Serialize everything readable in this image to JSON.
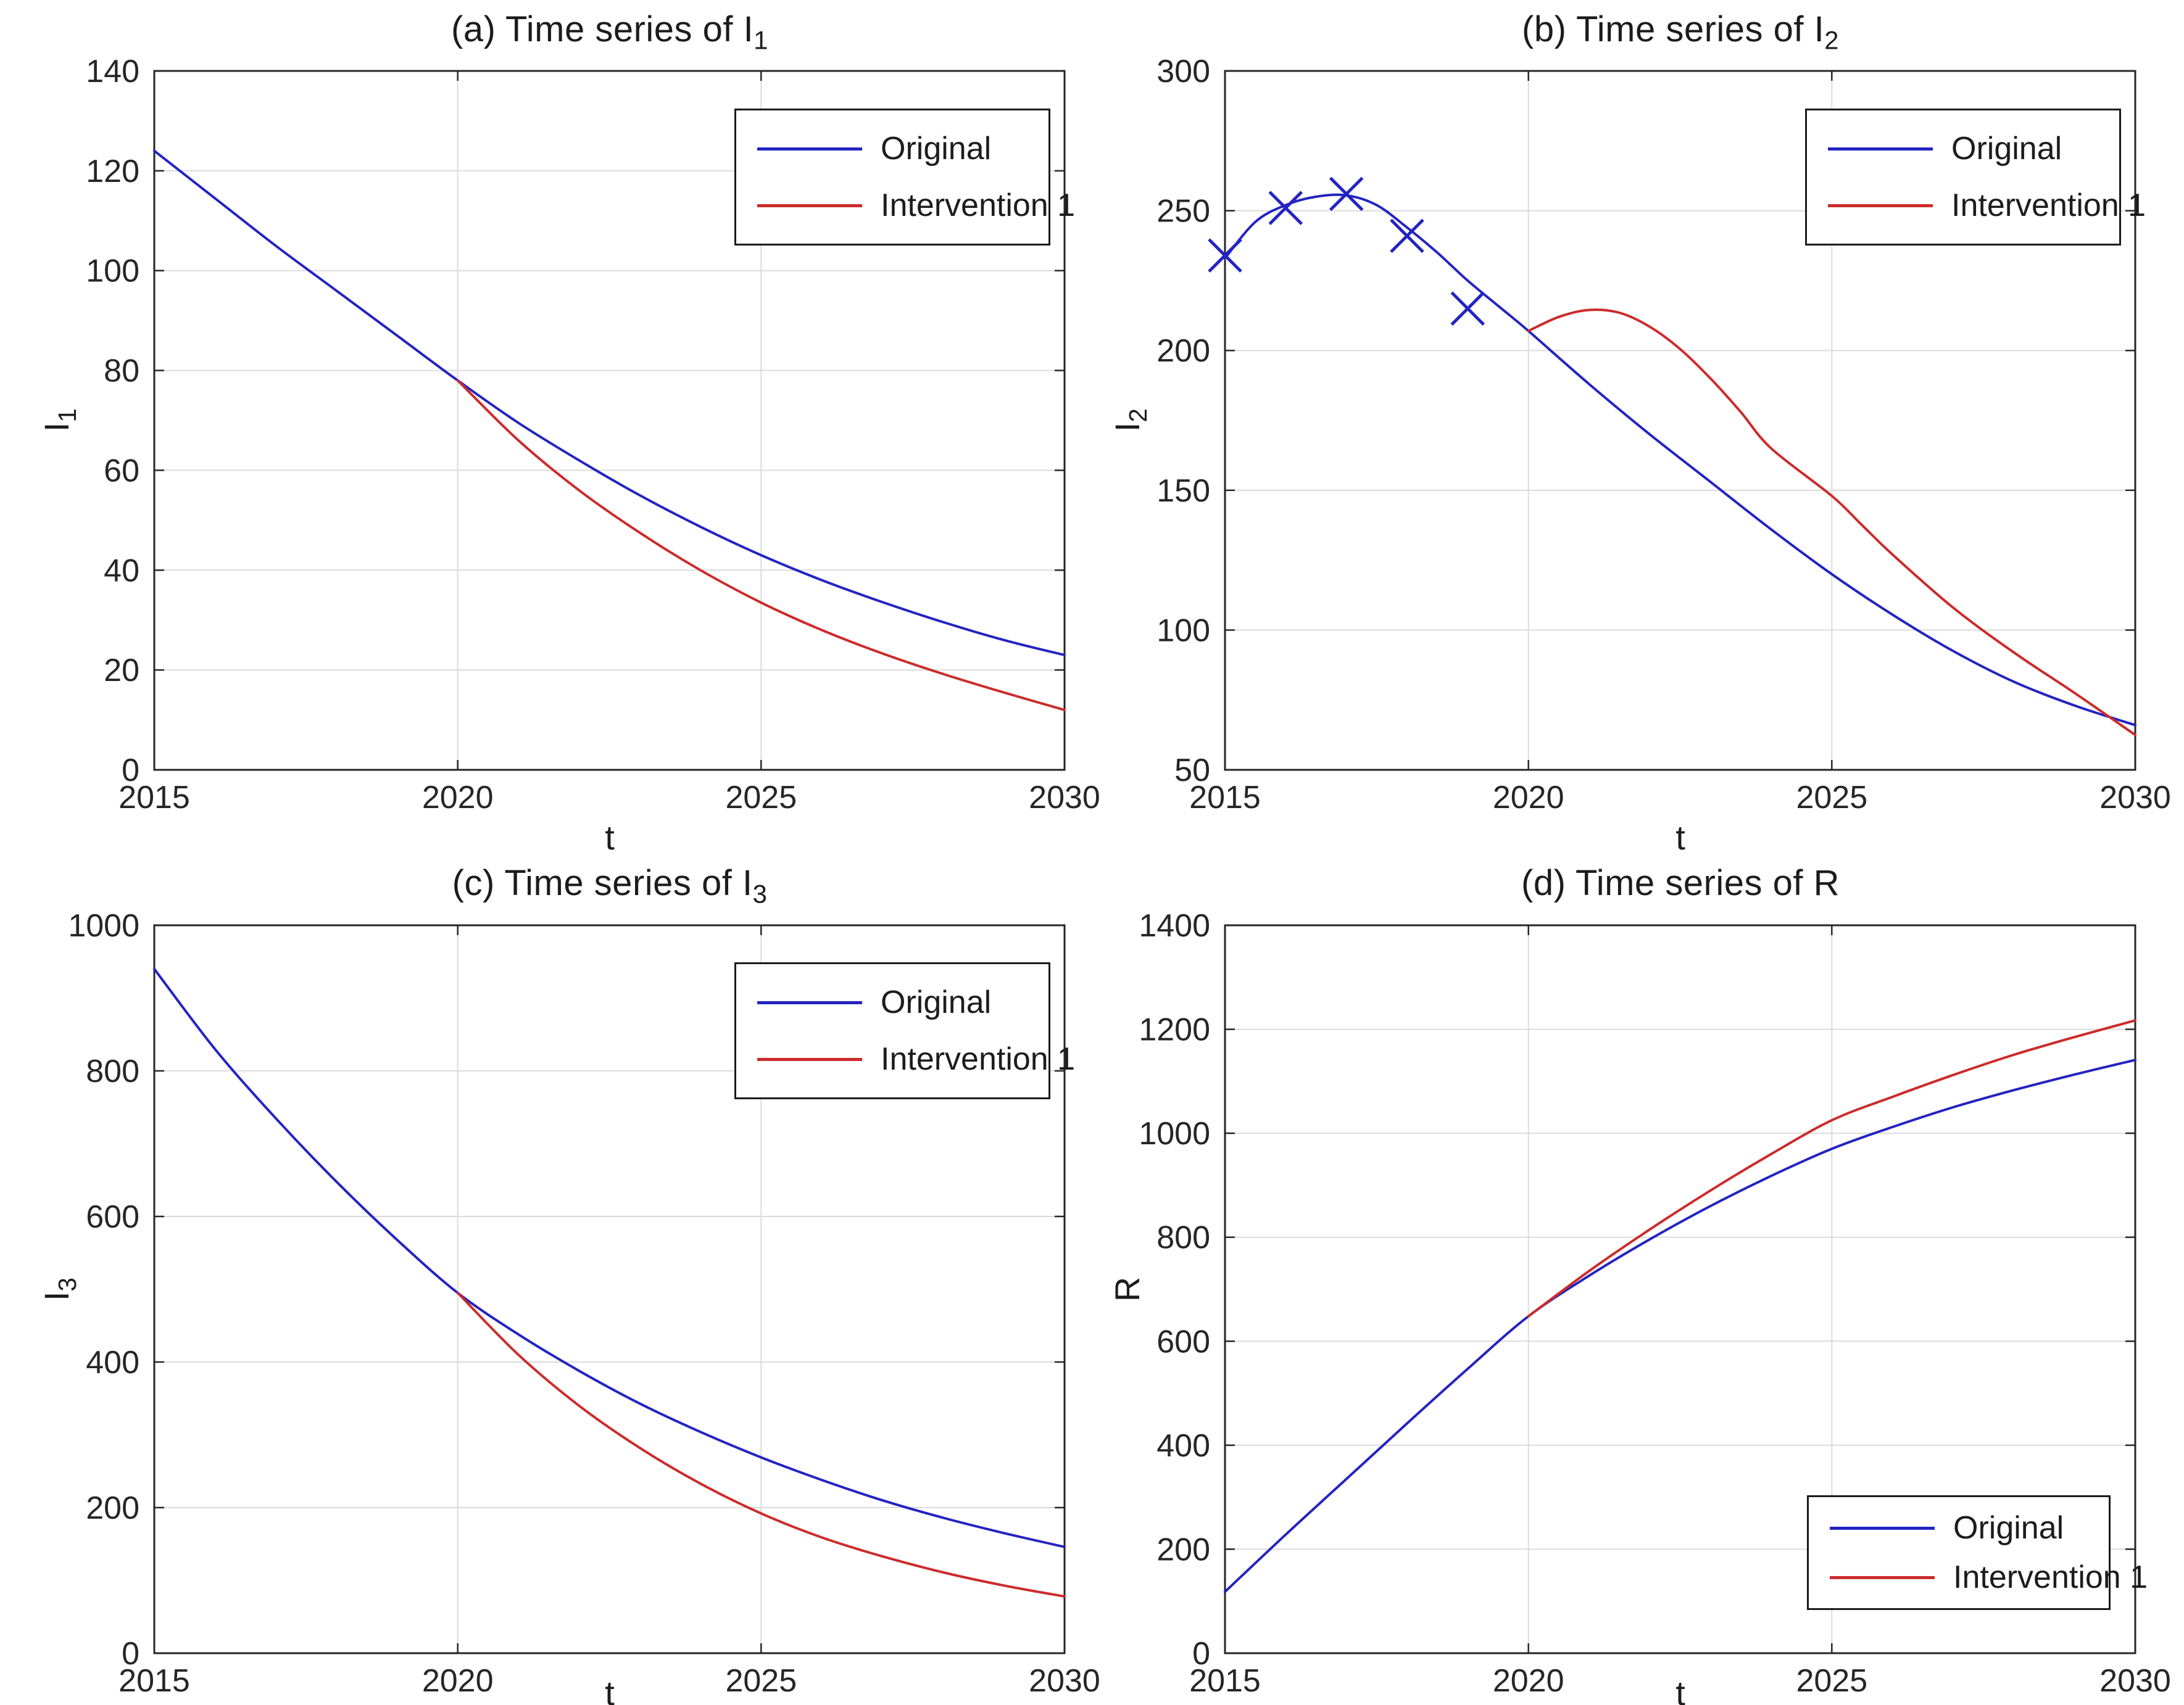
{
  "figure": {
    "background": "#ffffff"
  },
  "colors": {
    "original": "#2323C2",
    "intervention": "#CC2B2B",
    "axis": "#262626",
    "grid": "#DBDBDB",
    "tick_label": "#262626"
  },
  "legend": {
    "original_label": "Original",
    "intervention_label": "Intervention 1"
  },
  "chart_data": [
    {
      "id": "a",
      "type": "line",
      "title_main": "(a) Time series of I",
      "title_sub": "1",
      "xlabel": "t",
      "ylabel_main": "I",
      "ylabel_sub": "1",
      "xlim": [
        2015,
        2030
      ],
      "ylim": [
        0,
        140
      ],
      "xticks": [
        2015,
        2020,
        2025,
        2030
      ],
      "yticks": [
        0,
        20,
        40,
        60,
        80,
        100,
        120,
        140
      ],
      "grid": true,
      "legend_position": "top-right",
      "series": [
        {
          "name": "Original",
          "color_key": "original",
          "points": [
            [
              2015,
              124
            ],
            [
              2016,
              114.5
            ],
            [
              2017,
              105
            ],
            [
              2018,
              96
            ],
            [
              2019,
              87
            ],
            [
              2020,
              78
            ],
            [
              2021,
              69.5
            ],
            [
              2022,
              62
            ],
            [
              2023,
              55
            ],
            [
              2024,
              48.7
            ],
            [
              2025,
              43
            ],
            [
              2026,
              38
            ],
            [
              2027,
              33.6
            ],
            [
              2028,
              29.6
            ],
            [
              2029,
              26
            ],
            [
              2030,
              23
            ]
          ]
        },
        {
          "name": "Intervention 1",
          "color_key": "intervention",
          "points": [
            [
              2020,
              78
            ],
            [
              2021,
              66
            ],
            [
              2022,
              56
            ],
            [
              2023,
              47.5
            ],
            [
              2024,
              40
            ],
            [
              2025,
              33.5
            ],
            [
              2026,
              28
            ],
            [
              2027,
              23.3
            ],
            [
              2028,
              19.2
            ],
            [
              2029,
              15.5
            ],
            [
              2030,
              12
            ]
          ]
        }
      ]
    },
    {
      "id": "b",
      "type": "line",
      "title_main": "(b) Time series of I",
      "title_sub": "2",
      "xlabel": "t",
      "ylabel_main": "I",
      "ylabel_sub": "2",
      "xlim": [
        2015,
        2030
      ],
      "ylim": [
        50,
        300
      ],
      "xticks": [
        2015,
        2020,
        2025,
        2030
      ],
      "yticks": [
        50,
        100,
        150,
        200,
        250,
        300
      ],
      "grid": true,
      "legend_position": "top-right",
      "series": [
        {
          "name": "Original",
          "color_key": "original",
          "points": [
            [
              2015,
              233
            ],
            [
              2015.5,
              246
            ],
            [
              2016,
              252
            ],
            [
              2016.5,
              255
            ],
            [
              2017,
              255.5
            ],
            [
              2017.5,
              252
            ],
            [
              2018,
              244
            ],
            [
              2018.5,
              235
            ],
            [
              2019,
              225
            ],
            [
              2019.5,
              216
            ],
            [
              2020,
              207
            ],
            [
              2021,
              188
            ],
            [
              2022,
              170
            ],
            [
              2023,
              153
            ],
            [
              2024,
              136
            ],
            [
              2025,
              120
            ],
            [
              2026,
              105.5
            ],
            [
              2027,
              92.5
            ],
            [
              2028,
              81.5
            ],
            [
              2029,
              73
            ],
            [
              2030,
              66
            ]
          ]
        },
        {
          "name": "Intervention 1",
          "color_key": "intervention",
          "points": [
            [
              2020,
              207
            ],
            [
              2020.5,
              212
            ],
            [
              2021,
              214.5
            ],
            [
              2021.5,
              213.5
            ],
            [
              2022,
              208.5
            ],
            [
              2022.5,
              200.5
            ],
            [
              2023,
              190
            ],
            [
              2023.5,
              178
            ],
            [
              2024,
              165
            ],
            [
              2025,
              148
            ],
            [
              2025.5,
              137.5
            ],
            [
              2026,
              127
            ],
            [
              2027,
              108
            ],
            [
              2028,
              92
            ],
            [
              2029,
              77.5
            ],
            [
              2030,
              62.5
            ]
          ]
        }
      ],
      "markers": {
        "shape": "x",
        "color_key": "original",
        "points": [
          [
            2015,
            234
          ],
          [
            2016,
            251
          ],
          [
            2017,
            256
          ],
          [
            2018,
            241
          ],
          [
            2019,
            215
          ]
        ]
      }
    },
    {
      "id": "c",
      "type": "line",
      "title_main": "(c) Time series of I",
      "title_sub": "3",
      "xlabel": "t",
      "ylabel_main": "I",
      "ylabel_sub": "3",
      "xlim": [
        2015,
        2030
      ],
      "ylim": [
        0,
        1000
      ],
      "xticks": [
        2015,
        2020,
        2025,
        2030
      ],
      "yticks": [
        0,
        200,
        400,
        600,
        800,
        1000
      ],
      "grid": true,
      "legend_position": "top-right",
      "series": [
        {
          "name": "Original",
          "color_key": "original",
          "points": [
            [
              2015,
              940
            ],
            [
              2016,
              830
            ],
            [
              2017,
              735
            ],
            [
              2018,
              648
            ],
            [
              2019,
              568
            ],
            [
              2020,
              495
            ],
            [
              2021,
              438
            ],
            [
              2022,
              388
            ],
            [
              2023,
              343
            ],
            [
              2024,
              304
            ],
            [
              2025,
              269
            ],
            [
              2026,
              238
            ],
            [
              2027,
              210
            ],
            [
              2028,
              186
            ],
            [
              2029,
              165
            ],
            [
              2030,
              146
            ]
          ]
        },
        {
          "name": "Intervention 1",
          "color_key": "intervention",
          "points": [
            [
              2020,
              495
            ],
            [
              2021,
              410
            ],
            [
              2022,
              340
            ],
            [
              2023,
              282
            ],
            [
              2024,
              233
            ],
            [
              2025,
              192
            ],
            [
              2026,
              159
            ],
            [
              2027,
              133
            ],
            [
              2028,
              111
            ],
            [
              2029,
              93
            ],
            [
              2030,
              78
            ]
          ]
        }
      ]
    },
    {
      "id": "d",
      "type": "line",
      "title_main": "(d) Time series of R",
      "title_sub": "",
      "xlabel": "t",
      "ylabel_main": "R",
      "ylabel_sub": "",
      "xlim": [
        2015,
        2030
      ],
      "ylim": [
        0,
        1400
      ],
      "xticks": [
        2015,
        2020,
        2025,
        2030
      ],
      "yticks": [
        0,
        200,
        400,
        600,
        800,
        1000,
        1200,
        1400
      ],
      "grid": true,
      "legend_position": "bottom-right",
      "series": [
        {
          "name": "Original",
          "color_key": "original",
          "points": [
            [
              2015,
              118
            ],
            [
              2016,
              228
            ],
            [
              2017,
              335
            ],
            [
              2018,
              442
            ],
            [
              2019,
              547
            ],
            [
              2020,
              648
            ],
            [
              2021,
              726
            ],
            [
              2022,
              796
            ],
            [
              2023,
              860
            ],
            [
              2024,
              918
            ],
            [
              2025,
              970
            ],
            [
              2026,
              1012
            ],
            [
              2027,
              1050
            ],
            [
              2028,
              1083
            ],
            [
              2029,
              1113
            ],
            [
              2030,
              1141
            ]
          ]
        },
        {
          "name": "Intervention 1",
          "color_key": "intervention",
          "points": [
            [
              2020,
              648
            ],
            [
              2021,
              735
            ],
            [
              2022,
              815
            ],
            [
              2023,
              890
            ],
            [
              2024,
              960
            ],
            [
              2025,
              1025
            ],
            [
              2026,
              1070
            ],
            [
              2027,
              1112
            ],
            [
              2028,
              1151
            ],
            [
              2029,
              1185
            ],
            [
              2030,
              1217
            ]
          ]
        }
      ]
    }
  ]
}
